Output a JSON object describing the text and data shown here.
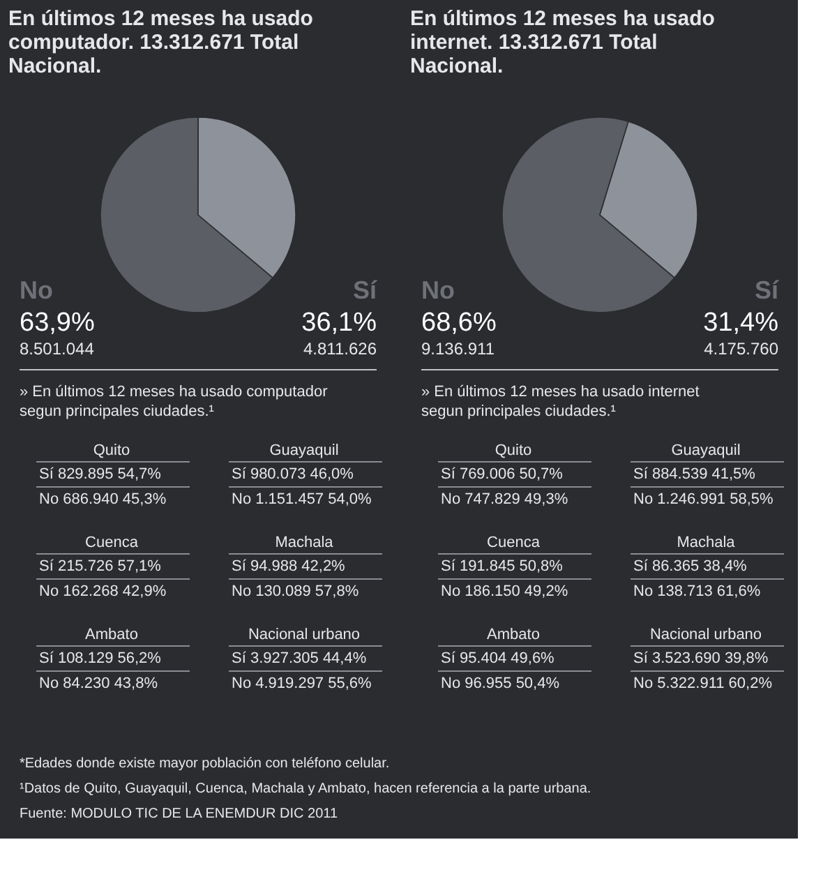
{
  "chart_data": [
    {
      "type": "pie",
      "title": "En últimos 12 meses ha usado computador. 13.312.671 Total Nacional.",
      "categories": [
        "No",
        "Sí"
      ],
      "values": [
        63.9,
        36.1
      ],
      "colors": [
        "#5c5e65",
        "#8e929b"
      ],
      "value_labels": [
        "63,9%",
        "36,1%"
      ],
      "annotations": [
        "8.501.044",
        "4.811.626",
        "» En últimos 12 meses ha usado computador segun principales ciudades.¹",
        "Quito",
        "Sí 829.895 54,7%",
        "No 686.940 45,3%",
        "Guayaquil",
        "Sí 980.073 46,0%",
        "No 1.151.457 54,0%",
        "Cuenca",
        "Sí 215.726 57,1%",
        "No 162.268 42,9%",
        "Machala",
        "Sí 94.988 42,2%",
        "No 130.089 57,8%",
        "Ambato",
        "Sí 108.129 56,2%",
        "No 84.230 43,8%",
        "Nacional urbano",
        "Sí 3.927.305 44,4%",
        "No 4.919.297 55,6%"
      ]
    },
    {
      "type": "pie",
      "title": "En últimos 12 meses ha usado internet. 13.312.671 Total Nacional.",
      "categories": [
        "No",
        "Sí"
      ],
      "values": [
        68.6,
        31.4
      ],
      "colors": [
        "#5c5e65",
        "#8e929b"
      ],
      "value_labels": [
        "68,6%",
        "31,4%"
      ],
      "annotations": [
        "9.136.911",
        "4.175.760",
        "» En últimos 12 meses ha usado internet segun principales ciudades.¹",
        "Quito",
        "Sí 769.006 50,7%",
        "No 747.829 49,3%",
        "Guayaquil",
        "Sí 884.539 41,5%",
        "No 1.246.991 58,5%",
        "Cuenca",
        "Sí 191.845 50,8%",
        "No 186.150 49,2%",
        "Machala",
        "Sí 86.365 38,4%",
        "No 138.713 61,6%",
        "Ambato",
        "Sí 95.404 49,6%",
        "No 96.955 50,4%",
        "Nacional urbano",
        "Sí 3.523.690 39,8%",
        "No 5.322.911 60,2%"
      ]
    },
    {
      "type": "other",
      "annotations": [
        "*Edades donde existe mayor población con teléfono celular.",
        "¹Datos de Quito, Guayaquil, Cuenca, Machala y Ambato, hacen referencia a la parte urbana.",
        "Fuente: MODULO TIC DE LA ENEMDUR DIC 2011"
      ]
    }
  ]
}
